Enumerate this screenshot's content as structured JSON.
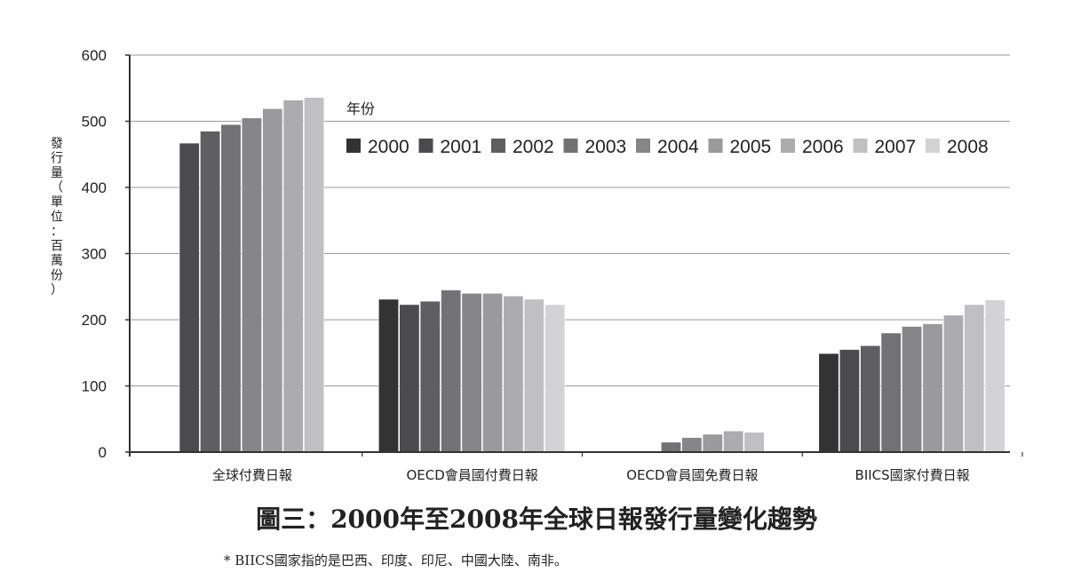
{
  "chart_data": {
    "type": "bar",
    "title": "圖三：2000年至2008年全球日報發行量變化趨勢",
    "ylabel": "發行量（單位：百萬份）",
    "ylim": [
      0,
      600
    ],
    "yticks": [
      "0",
      "100",
      "200",
      "300",
      "400",
      "500",
      "600"
    ],
    "grid": true,
    "legend_title": "年份",
    "legend_position": "top-right",
    "categories": [
      "全球付費日報",
      "OECD會員國付費日報",
      "OECD會員國免費日報",
      "BIICS國家付費日報"
    ],
    "series": [
      {
        "name": "2000",
        "color": "#333333",
        "values": [
          null,
          231,
          null,
          149
        ]
      },
      {
        "name": "2001",
        "color": "#4b4b4d",
        "values": [
          467,
          223,
          null,
          155
        ]
      },
      {
        "name": "2002",
        "color": "#5f5f61",
        "values": [
          485,
          228,
          null,
          161
        ]
      },
      {
        "name": "2003",
        "color": "#727274",
        "values": [
          495,
          245,
          15,
          180
        ]
      },
      {
        "name": "2004",
        "color": "#868688",
        "values": [
          505,
          240,
          22,
          190
        ]
      },
      {
        "name": "2005",
        "color": "#9a9a9c",
        "values": [
          519,
          240,
          27,
          194
        ]
      },
      {
        "name": "2006",
        "color": "#acacae",
        "values": [
          532,
          236,
          32,
          207
        ]
      },
      {
        "name": "2007",
        "color": "#c0c0c2",
        "values": [
          536,
          231,
          30,
          223
        ]
      },
      {
        "name": "2008",
        "color": "#d3d3d5",
        "values": [
          null,
          223,
          null,
          230
        ]
      }
    ],
    "footnote": "* BIICS國家指的是巴西、印度、印尼、中國大陸、南非。"
  }
}
